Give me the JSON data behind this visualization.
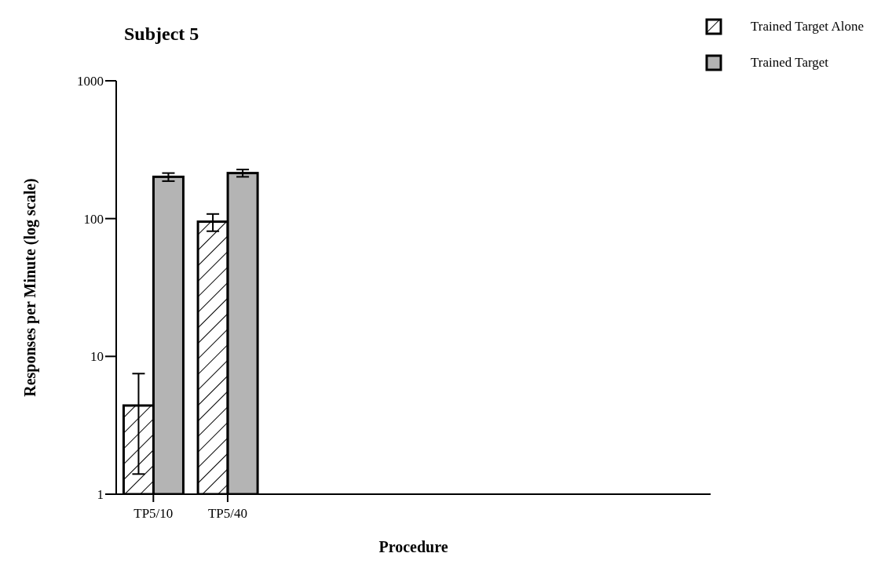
{
  "chart_data": {
    "type": "bar",
    "title": "Subject 5",
    "xlabel": "Procedure",
    "ylabel": "Responses per Minute (log scale)",
    "categories": [
      "TP5/10",
      "TP5/40",
      null,
      null,
      null,
      null,
      null,
      null
    ],
    "series": [
      {
        "name": "Trained Target Alone",
        "color": "#000000",
        "values": [
          4.4,
          95,
          null,
          null,
          null,
          null,
          null,
          null
        ],
        "errors": [
          [
            1.4,
            7.5
          ],
          [
            81,
            108
          ],
          null,
          null,
          null,
          null,
          null,
          null
        ]
      },
      {
        "name": "Trained Target",
        "color": "#b4b4b4",
        "values": [
          201,
          214,
          null,
          null,
          null,
          null,
          null,
          null
        ],
        "errors": [
          [
            187,
            214
          ],
          [
            201,
            227
          ],
          null,
          null,
          null,
          null,
          null,
          null
        ]
      }
    ],
    "log": true,
    "ylim": [
      1,
      1000
    ],
    "yticks": [
      1,
      10,
      100,
      1000
    ],
    "grid": false,
    "legend": "top right"
  }
}
